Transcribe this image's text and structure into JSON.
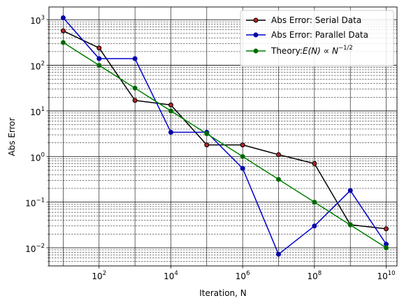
{
  "chart_data": {
    "type": "line",
    "xlabel": "Iteration, N",
    "ylabel": "Abs Error",
    "x_scale": "log",
    "y_scale": "log",
    "xlim": [
      4,
      20000000000
    ],
    "ylim": [
      0.004,
      1900
    ],
    "grid": "major and minor",
    "legend_position": "top-right",
    "x_ticks": [
      {
        "value": 100,
        "base": "10",
        "exp": "2"
      },
      {
        "value": 10000,
        "base": "10",
        "exp": "4"
      },
      {
        "value": 1000000,
        "base": "10",
        "exp": "6"
      },
      {
        "value": 100000000,
        "base": "10",
        "exp": "8"
      },
      {
        "value": 10000000000,
        "base": "10",
        "exp": "10"
      }
    ],
    "y_ticks": [
      {
        "value": 0.01,
        "base": "10",
        "exp": "−2"
      },
      {
        "value": 0.1,
        "base": "10",
        "exp": "−1"
      },
      {
        "value": 1,
        "base": "10",
        "exp": "0"
      },
      {
        "value": 10,
        "base": "10",
        "exp": "1"
      },
      {
        "value": 100,
        "base": "10",
        "exp": "2"
      },
      {
        "value": 1000,
        "base": "10",
        "exp": "3"
      }
    ],
    "x": [
      10,
      100,
      1000,
      10000,
      100000,
      1000000,
      10000000,
      100000000,
      1000000000,
      10000000000
    ],
    "series": [
      {
        "name": "Abs Error: Serial Data",
        "line_color": "#000000",
        "marker_color": "#b22222",
        "values": [
          570,
          240,
          17,
          13.5,
          1.8,
          1.8,
          1.1,
          0.7,
          0.032,
          0.026
        ]
      },
      {
        "name": "Abs Error: Parallel Data",
        "line_color": "#0000cc",
        "marker_color": "#0a0a8f",
        "values": [
          1100,
          140,
          140,
          3.4,
          3.4,
          0.55,
          0.0072,
          0.03,
          0.18,
          0.012
        ]
      },
      {
        "name_prefix": "Theory:",
        "name_math": "E(N) ∝ N",
        "name_exp": "−1/2",
        "line_color": "#008000",
        "marker_color": "#0b5e0b",
        "values": [
          316,
          100,
          31.6,
          10,
          3.16,
          1,
          0.316,
          0.1,
          0.0316,
          0.01
        ]
      }
    ]
  }
}
